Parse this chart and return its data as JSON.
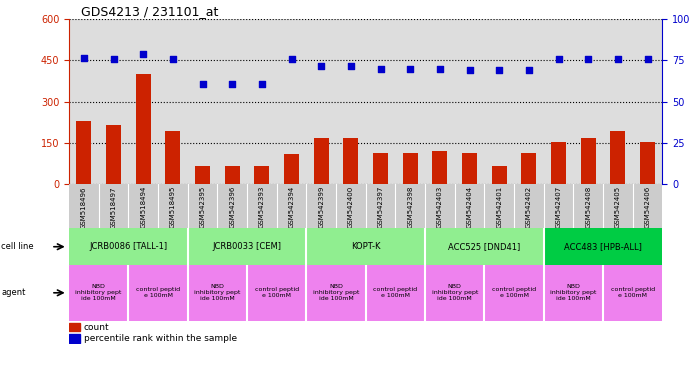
{
  "title": "GDS4213 / 231101_at",
  "gsm_labels": [
    "GSM518496",
    "GSM518497",
    "GSM518494",
    "GSM518495",
    "GSM542395",
    "GSM542396",
    "GSM542393",
    "GSM542394",
    "GSM542399",
    "GSM542400",
    "GSM542397",
    "GSM542398",
    "GSM542403",
    "GSM542404",
    "GSM542401",
    "GSM542402",
    "GSM542407",
    "GSM542408",
    "GSM542405",
    "GSM542406"
  ],
  "bar_values": [
    230,
    215,
    400,
    195,
    65,
    65,
    65,
    110,
    170,
    170,
    115,
    115,
    120,
    115,
    65,
    115,
    155,
    170,
    195,
    155
  ],
  "scatter_values_pct": [
    76.5,
    75.8,
    79.0,
    75.8,
    60.8,
    60.8,
    60.8,
    75.8,
    71.7,
    71.7,
    70.0,
    70.0,
    70.0,
    69.2,
    69.2,
    69.2,
    75.8,
    75.8,
    75.8,
    75.8
  ],
  "cell_line_groups": [
    {
      "label": "JCRB0086 [TALL-1]",
      "start": 0,
      "end": 4,
      "color": "#90EE90"
    },
    {
      "label": "JCRB0033 [CEM]",
      "start": 4,
      "end": 8,
      "color": "#90EE90"
    },
    {
      "label": "KOPT-K",
      "start": 8,
      "end": 12,
      "color": "#90EE90"
    },
    {
      "label": "ACC525 [DND41]",
      "start": 12,
      "end": 16,
      "color": "#90EE90"
    },
    {
      "label": "ACC483 [HPB-ALL]",
      "start": 16,
      "end": 20,
      "color": "#00CC44"
    }
  ],
  "agent_groups": [
    {
      "label": "NBD\ninhibitory pept\nide 100mM",
      "start": 0,
      "end": 2,
      "color": "#EE82EE"
    },
    {
      "label": "control peptid\ne 100mM",
      "start": 2,
      "end": 4,
      "color": "#EE82EE"
    },
    {
      "label": "NBD\ninhibitory pept\nide 100mM",
      "start": 4,
      "end": 6,
      "color": "#EE82EE"
    },
    {
      "label": "control peptid\ne 100mM",
      "start": 6,
      "end": 8,
      "color": "#EE82EE"
    },
    {
      "label": "NBD\ninhibitory pept\nide 100mM",
      "start": 8,
      "end": 10,
      "color": "#EE82EE"
    },
    {
      "label": "control peptid\ne 100mM",
      "start": 10,
      "end": 12,
      "color": "#EE82EE"
    },
    {
      "label": "NBD\ninhibitory pept\nide 100mM",
      "start": 12,
      "end": 14,
      "color": "#EE82EE"
    },
    {
      "label": "control peptid\ne 100mM",
      "start": 14,
      "end": 16,
      "color": "#EE82EE"
    },
    {
      "label": "NBD\ninhibitory pept\nide 100mM",
      "start": 16,
      "end": 18,
      "color": "#EE82EE"
    },
    {
      "label": "control peptid\ne 100mM",
      "start": 18,
      "end": 20,
      "color": "#EE82EE"
    }
  ],
  "ylim_left": [
    0,
    600
  ],
  "ylim_right": [
    0,
    100
  ],
  "yticks_left": [
    0,
    150,
    300,
    450,
    600
  ],
  "yticks_right": [
    0,
    25,
    50,
    75,
    100
  ],
  "bar_color": "#CC2200",
  "scatter_color": "#0000CC",
  "background_color": "#FFFFFF",
  "plot_bg_color": "#DDDDDD",
  "cell_line_label": "cell line",
  "agent_label": "agent",
  "legend_count": "count",
  "legend_percentile": "percentile rank within the sample"
}
